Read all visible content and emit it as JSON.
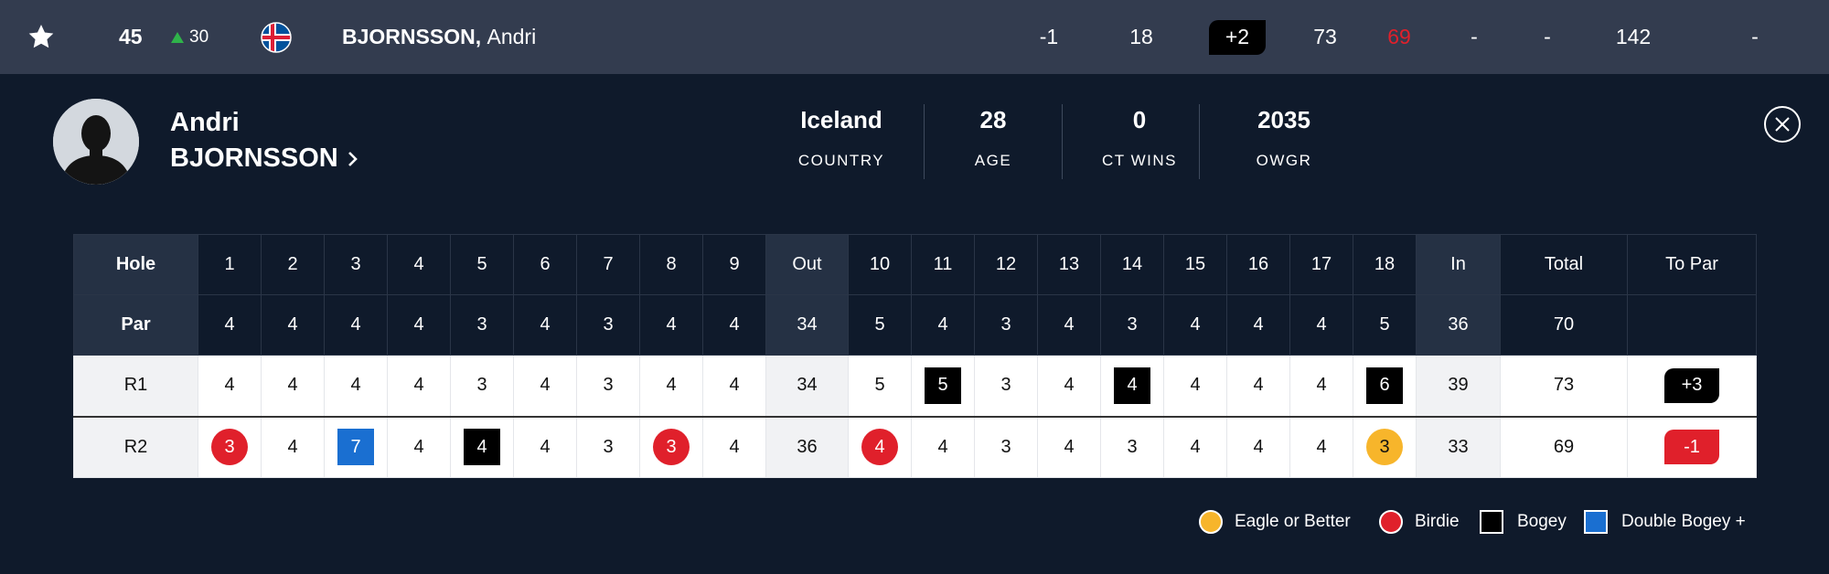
{
  "top_row": {
    "position": "45",
    "movement": "30",
    "player_name_last": "BJORNSSON,",
    "player_name_first": "Andri",
    "to_par": "-1",
    "thru": "18",
    "total_to_par": "+2",
    "r1": "73",
    "r2": "69",
    "r3": "-",
    "r4": "-",
    "total": "142",
    "extra": "-",
    "colors": {
      "movement_up": "#2fb34a",
      "under_par": "#e0202b"
    }
  },
  "profile": {
    "first_name": "Andri",
    "last_name": "BJORNSSON",
    "stats": [
      {
        "value": "Iceland",
        "label": "COUNTRY"
      },
      {
        "value": "28",
        "label": "AGE"
      },
      {
        "value": "0",
        "label": "CT WINS"
      },
      {
        "value": "2035",
        "label": "OWGR"
      }
    ]
  },
  "scorecard": {
    "header": [
      "Hole",
      "1",
      "2",
      "3",
      "4",
      "5",
      "6",
      "7",
      "8",
      "9",
      "Out",
      "10",
      "11",
      "12",
      "13",
      "14",
      "15",
      "16",
      "17",
      "18",
      "In",
      "Total",
      "To Par"
    ],
    "par": [
      "Par",
      "4",
      "4",
      "4",
      "4",
      "3",
      "4",
      "3",
      "4",
      "4",
      "34",
      "5",
      "4",
      "3",
      "4",
      "3",
      "4",
      "4",
      "4",
      "5",
      "36",
      "70",
      ""
    ],
    "rounds": [
      {
        "label": "R1",
        "scores": [
          "4",
          "4",
          "4",
          "4",
          "3",
          "4",
          "3",
          "4",
          "4",
          "34",
          "5",
          "5",
          "3",
          "4",
          "4",
          "4",
          "4",
          "4",
          "6",
          "39",
          "73"
        ],
        "types": [
          "",
          "",
          "",
          "",
          "",
          "",
          "",
          "",
          "",
          "sub",
          "",
          "bogey",
          "",
          "",
          "bogey",
          "",
          "",
          "",
          "bogey",
          "sub",
          ""
        ],
        "to_par": "+3",
        "to_par_type": "over"
      },
      {
        "label": "R2",
        "scores": [
          "3",
          "4",
          "7",
          "4",
          "4",
          "4",
          "3",
          "3",
          "4",
          "36",
          "4",
          "4",
          "3",
          "4",
          "3",
          "4",
          "4",
          "4",
          "3",
          "33",
          "69"
        ],
        "types": [
          "birdie",
          "",
          "dbl",
          "",
          "bogey",
          "",
          "",
          "birdie",
          "",
          "sub",
          "birdie",
          "",
          "",
          "",
          "",
          "",
          "",
          "",
          "eagle",
          "sub",
          ""
        ],
        "to_par": "-1",
        "to_par_type": "under"
      }
    ]
  },
  "legend": {
    "eagle": "Eagle or Better",
    "birdie": "Birdie",
    "bogey": "Bogey",
    "double": "Double Bogey +",
    "colors": {
      "eagle": "#f7b52b",
      "birdie": "#e0202b",
      "bogey": "#000000",
      "double": "#1a6fd1"
    }
  },
  "icons": [
    "star-icon",
    "flag-icon",
    "chevron-right-icon",
    "close-icon",
    "avatar-silhouette"
  ]
}
